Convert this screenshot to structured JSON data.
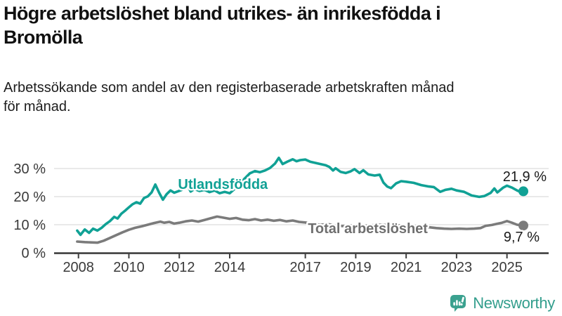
{
  "header": {
    "title_lines": [
      "Högre arbetslöshet bland utrikes- än inrikesfödda i",
      "Bromölla"
    ],
    "subtitle_lines": [
      "Arbetssökande som andel av den registerbaserade arbetskraften månad",
      "för månad."
    ]
  },
  "footer": {
    "brand": "Newsworthy"
  },
  "colors": {
    "teal_line": "#10a195",
    "gray_line": "#7b7b7b",
    "gray_label": "#6f6f6f",
    "axis": "#3f3f3f",
    "grid": "#dcdcdc",
    "value_label": "#1a1a1a",
    "logo_teal": "#3ba18f",
    "wordmark_teal": "#339e8d"
  },
  "chart_data": {
    "type": "line",
    "title": "Högre arbetslöshet bland utrikes- än inrikesfödda i Bromölla",
    "subtitle": "Arbetssökande som andel av den registerbaserade arbetskraften månad för månad.",
    "unit": "%",
    "grid": true,
    "legend_position": "inline-labels",
    "x_axis": {
      "tick_years": [
        2008,
        2010,
        2012,
        2014,
        2017,
        2019,
        2021,
        2023,
        2025
      ],
      "range": [
        2007.0,
        2026.7
      ]
    },
    "y_axis": {
      "ticks": [
        0,
        10,
        20,
        30
      ],
      "labels": [
        "0 %",
        "10 %",
        "20 %",
        "30 %"
      ],
      "range": [
        0,
        37
      ]
    },
    "series": [
      {
        "name": "Utlandsfödda",
        "color": "#10a195",
        "label_color": "#10a195",
        "end_value": 21.9,
        "end_value_label": "21,9 %",
        "label_pos": {
          "year": 2011.95,
          "value": 22.75
        },
        "points": [
          [
            2007.95,
            7.9
          ],
          [
            2008.08,
            6.4
          ],
          [
            2008.25,
            8.3
          ],
          [
            2008.42,
            7.1
          ],
          [
            2008.58,
            8.6
          ],
          [
            2008.75,
            7.9
          ],
          [
            2008.92,
            8.9
          ],
          [
            2009.08,
            10.2
          ],
          [
            2009.25,
            11.3
          ],
          [
            2009.42,
            12.8
          ],
          [
            2009.55,
            12.2
          ],
          [
            2009.7,
            13.9
          ],
          [
            2009.85,
            15.0
          ],
          [
            2010.0,
            16.2
          ],
          [
            2010.15,
            17.3
          ],
          [
            2010.3,
            18.0
          ],
          [
            2010.45,
            17.5
          ],
          [
            2010.6,
            19.5
          ],
          [
            2010.75,
            20.1
          ],
          [
            2010.9,
            21.5
          ],
          [
            2011.05,
            24.3
          ],
          [
            2011.2,
            21.4
          ],
          [
            2011.35,
            18.9
          ],
          [
            2011.5,
            20.9
          ],
          [
            2011.65,
            22.2
          ],
          [
            2011.8,
            21.4
          ],
          [
            2011.95,
            21.9
          ],
          [
            2012.1,
            22.4
          ],
          [
            2012.3,
            24.4
          ],
          [
            2012.45,
            21.8
          ],
          [
            2012.6,
            22.7
          ],
          [
            2012.8,
            22.0
          ],
          [
            2013.0,
            22.4
          ],
          [
            2013.2,
            21.6
          ],
          [
            2013.4,
            22.2
          ],
          [
            2013.6,
            21.2
          ],
          [
            2013.8,
            21.7
          ],
          [
            2014.0,
            21.2
          ],
          [
            2014.2,
            22.8
          ],
          [
            2014.4,
            24.6
          ],
          [
            2014.6,
            26.5
          ],
          [
            2014.8,
            28.3
          ],
          [
            2015.0,
            29.1
          ],
          [
            2015.2,
            28.7
          ],
          [
            2015.4,
            29.3
          ],
          [
            2015.6,
            30.2
          ],
          [
            2015.8,
            31.8
          ],
          [
            2015.95,
            33.8
          ],
          [
            2016.1,
            31.6
          ],
          [
            2016.3,
            32.5
          ],
          [
            2016.5,
            33.3
          ],
          [
            2016.65,
            32.6
          ],
          [
            2016.8,
            33.0
          ],
          [
            2017.0,
            33.2
          ],
          [
            2017.2,
            32.4
          ],
          [
            2017.4,
            32.0
          ],
          [
            2017.6,
            31.6
          ],
          [
            2017.8,
            31.2
          ],
          [
            2017.95,
            30.6
          ],
          [
            2018.1,
            29.3
          ],
          [
            2018.2,
            30.1
          ],
          [
            2018.4,
            28.8
          ],
          [
            2018.6,
            28.4
          ],
          [
            2018.8,
            29.0
          ],
          [
            2018.95,
            29.8
          ],
          [
            2019.15,
            28.4
          ],
          [
            2019.3,
            29.4
          ],
          [
            2019.5,
            27.9
          ],
          [
            2019.75,
            27.5
          ],
          [
            2019.95,
            27.8
          ],
          [
            2020.1,
            25.0
          ],
          [
            2020.25,
            23.6
          ],
          [
            2020.4,
            23.0
          ],
          [
            2020.6,
            24.7
          ],
          [
            2020.8,
            25.5
          ],
          [
            2021.0,
            25.3
          ],
          [
            2021.3,
            24.9
          ],
          [
            2021.6,
            24.1
          ],
          [
            2021.9,
            23.6
          ],
          [
            2022.1,
            23.4
          ],
          [
            2022.35,
            21.7
          ],
          [
            2022.55,
            22.4
          ],
          [
            2022.8,
            22.8
          ],
          [
            2023.0,
            22.2
          ],
          [
            2023.3,
            21.7
          ],
          [
            2023.6,
            20.4
          ],
          [
            2023.9,
            19.9
          ],
          [
            2024.1,
            20.2
          ],
          [
            2024.35,
            21.3
          ],
          [
            2024.5,
            22.9
          ],
          [
            2024.62,
            21.5
          ],
          [
            2024.85,
            23.2
          ],
          [
            2025.0,
            23.9
          ],
          [
            2025.2,
            23.2
          ],
          [
            2025.4,
            22.2
          ],
          [
            2025.55,
            21.6
          ],
          [
            2025.65,
            21.9
          ]
        ]
      },
      {
        "name": "Total arbetslöshet",
        "color": "#7b7b7b",
        "label_color": "#6f6f6f",
        "end_value": 9.7,
        "end_value_label": "9,7 %",
        "label_pos": {
          "year": 2017.1,
          "value": 7.0
        },
        "points": [
          [
            2007.95,
            4.0
          ],
          [
            2008.25,
            3.8
          ],
          [
            2008.5,
            3.7
          ],
          [
            2008.75,
            3.6
          ],
          [
            2009.0,
            4.3
          ],
          [
            2009.25,
            5.3
          ],
          [
            2009.5,
            6.3
          ],
          [
            2009.75,
            7.3
          ],
          [
            2010.0,
            8.2
          ],
          [
            2010.25,
            8.9
          ],
          [
            2010.5,
            9.4
          ],
          [
            2010.75,
            10.0
          ],
          [
            2011.0,
            10.6
          ],
          [
            2011.25,
            11.1
          ],
          [
            2011.4,
            10.7
          ],
          [
            2011.6,
            11.0
          ],
          [
            2011.8,
            10.4
          ],
          [
            2012.0,
            10.7
          ],
          [
            2012.25,
            11.2
          ],
          [
            2012.5,
            11.5
          ],
          [
            2012.75,
            11.1
          ],
          [
            2013.0,
            11.7
          ],
          [
            2013.25,
            12.3
          ],
          [
            2013.5,
            12.9
          ],
          [
            2013.7,
            12.6
          ],
          [
            2014.0,
            12.1
          ],
          [
            2014.25,
            12.4
          ],
          [
            2014.5,
            11.8
          ],
          [
            2014.75,
            11.6
          ],
          [
            2015.0,
            12.0
          ],
          [
            2015.25,
            11.5
          ],
          [
            2015.5,
            11.8
          ],
          [
            2015.75,
            11.4
          ],
          [
            2016.0,
            11.7
          ],
          [
            2016.25,
            11.2
          ],
          [
            2016.5,
            11.5
          ],
          [
            2016.75,
            11.0
          ],
          [
            2017.0,
            10.8
          ],
          [
            2017.3,
            10.3
          ],
          [
            2017.6,
            10.0
          ],
          [
            2017.9,
            10.2
          ],
          [
            2018.2,
            9.7
          ],
          [
            2018.5,
            9.5
          ],
          [
            2018.8,
            9.8
          ],
          [
            2019.1,
            9.6
          ],
          [
            2019.5,
            9.7
          ],
          [
            2019.9,
            10.0
          ],
          [
            2020.3,
            9.9
          ],
          [
            2020.7,
            9.8
          ],
          [
            2021.1,
            9.6
          ],
          [
            2021.5,
            9.4
          ],
          [
            2021.9,
            9.1
          ],
          [
            2022.2,
            8.8
          ],
          [
            2022.5,
            8.6
          ],
          [
            2022.8,
            8.5
          ],
          [
            2023.1,
            8.6
          ],
          [
            2023.4,
            8.5
          ],
          [
            2023.7,
            8.6
          ],
          [
            2023.95,
            8.8
          ],
          [
            2024.15,
            9.6
          ],
          [
            2024.4,
            9.9
          ],
          [
            2024.6,
            10.3
          ],
          [
            2024.8,
            10.7
          ],
          [
            2025.0,
            11.3
          ],
          [
            2025.2,
            10.7
          ],
          [
            2025.4,
            10.0
          ],
          [
            2025.65,
            9.7
          ]
        ]
      }
    ]
  }
}
